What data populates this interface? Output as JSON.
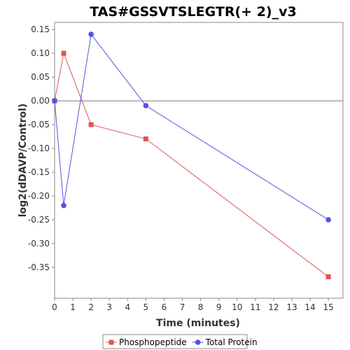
{
  "chart_data": {
    "type": "line",
    "title": "TAS#GSSVTSLEGTR(+ 2)_v3",
    "xlabel": "Time (minutes)",
    "ylabel": "log2(dDAVP/Control)",
    "xlim": [
      0,
      15.8
    ],
    "ylim": [
      -0.415,
      0.165
    ],
    "x_ticks": [
      "0",
      "1",
      "2",
      "3",
      "4",
      "5",
      "6",
      "7",
      "8",
      "9",
      "10",
      "11",
      "12",
      "13",
      "14",
      "15"
    ],
    "y_ticks": [
      "0.15",
      "0.10",
      "0.05",
      "0.00",
      "-0.05",
      "-0.10",
      "-0.15",
      "-0.20",
      "-0.25",
      "-0.30",
      "-0.35"
    ],
    "zero_line": true,
    "grid": false,
    "legend_position": "bottom",
    "series": [
      {
        "name": "Phosphopeptide",
        "color": "#e05353",
        "marker": "square",
        "x": [
          0,
          0.5,
          2,
          5,
          15
        ],
        "y": [
          0.0,
          0.1,
          -0.05,
          -0.08,
          -0.37
        ]
      },
      {
        "name": "Total Protein",
        "color": "#5353e0",
        "marker": "circle",
        "x": [
          0,
          0.5,
          2,
          5,
          15
        ],
        "y": [
          0.0,
          -0.22,
          0.14,
          -0.01,
          -0.25
        ]
      }
    ]
  }
}
